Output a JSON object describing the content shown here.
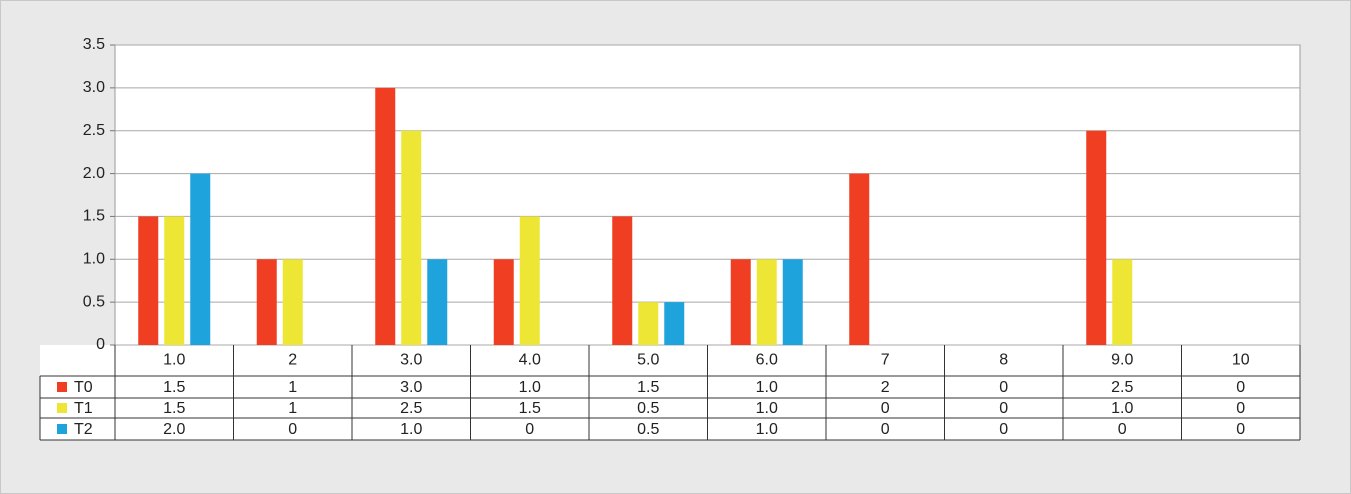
{
  "chart_data": {
    "type": "bar",
    "categories": [
      "1.0",
      "2",
      "3.0",
      "4.0",
      "5.0",
      "6.0",
      "7",
      "8",
      "9.0",
      "10"
    ],
    "series": [
      {
        "name": "T0",
        "color": "#ef3e22",
        "values": [
          1.5,
          1,
          3,
          1,
          1.5,
          1,
          2,
          0,
          2.5,
          0
        ],
        "value_labels": [
          "1.5",
          "1",
          "3.0",
          "1.0",
          "1.5",
          "1.0",
          "2",
          "0",
          "2.5",
          "0"
        ]
      },
      {
        "name": "T1",
        "color": "#eee634",
        "values": [
          1.5,
          1,
          2.5,
          1.5,
          0.5,
          1,
          0,
          0,
          1,
          0
        ],
        "value_labels": [
          "1.5",
          "1",
          "2.5",
          "1.5",
          "0.5",
          "1.0",
          "0",
          "0",
          "1.0",
          "0"
        ]
      },
      {
        "name": "T2",
        "color": "#1fa3dd",
        "values": [
          2,
          0,
          1,
          0,
          0.5,
          1,
          0,
          0,
          0,
          0
        ],
        "value_labels": [
          "2.0",
          "0",
          "1.0",
          "0",
          "0.5",
          "1.0",
          "0",
          "0",
          "0",
          "0"
        ]
      }
    ],
    "ylim": [
      0,
      3.5
    ],
    "yticks": [
      0,
      0.5,
      {
        "value": 1,
        "label": "1.0"
      },
      1.5,
      {
        "value": 2,
        "label": "2.0"
      },
      2.5,
      {
        "value": 3,
        "label": "3.0"
      },
      3.5
    ],
    "grid": true
  }
}
